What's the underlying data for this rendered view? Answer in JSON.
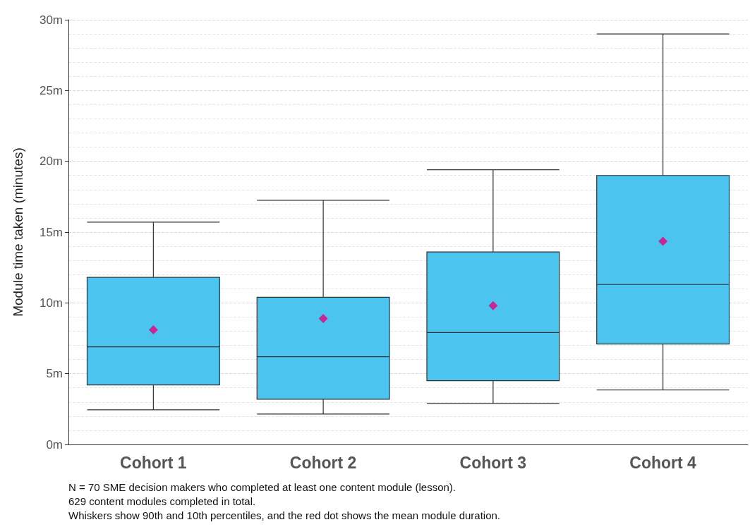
{
  "chart_data": {
    "type": "box",
    "ylabel": "Module time taken (minutes)",
    "categories": [
      "Cohort 1",
      "Cohort 2",
      "Cohort 3",
      "Cohort 4"
    ],
    "series": [
      {
        "color": "#4bc4f0",
        "boxes": [
          {
            "low": 2.45,
            "q1": 4.2,
            "median": 6.9,
            "q3": 11.8,
            "high": 15.7
          },
          {
            "low": 2.15,
            "q1": 3.2,
            "median": 6.2,
            "q3": 10.4,
            "high": 17.25
          },
          {
            "low": 2.9,
            "q1": 4.5,
            "median": 7.9,
            "q3": 13.6,
            "high": 19.4
          },
          {
            "low": 3.85,
            "q1": 7.1,
            "median": 11.3,
            "q3": 19.0,
            "high": 29.0
          }
        ]
      },
      {
        "type": "scatter",
        "color": "#e6007e",
        "x": [
          "Cohort 1",
          "Cohort 2",
          "Cohort 3",
          "Cohort 4"
        ],
        "values": [
          8.1,
          8.9,
          9.8,
          14.35
        ]
      }
    ],
    "marker": "diamond",
    "ylim": [
      0,
      30
    ],
    "yticks": [
      {
        "value": 0,
        "label": "0m"
      },
      {
        "value": 5,
        "label": "5m"
      },
      {
        "value": 10,
        "label": "10m"
      },
      {
        "value": 15,
        "label": "15m"
      },
      {
        "value": 20,
        "label": "20m"
      },
      {
        "value": 25,
        "label": "25m"
      },
      {
        "value": 30,
        "label": "30m"
      }
    ],
    "grid": "y",
    "annotations": [
      "N = 70 SME decision makers who completed at least one content module (lesson).",
      "629 content modules completed in total.",
      "Whiskers show 90th and 10th percentiles, and the red dot shows the mean module duration."
    ]
  }
}
